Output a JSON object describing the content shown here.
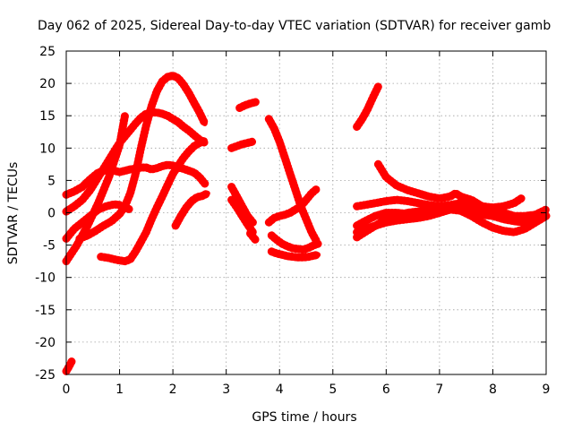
{
  "chart_data": {
    "type": "line",
    "title": "Day 062 of 2025, Sidereal Day-to-day VTEC variation (SDTVAR) for receiver gamb",
    "xlabel": "GPS time / hours",
    "ylabel": "SDTVAR / TECUs",
    "xlim": [
      0,
      9
    ],
    "ylim": [
      -25,
      25
    ],
    "xticks": [
      0,
      1,
      2,
      3,
      4,
      5,
      6,
      7,
      8,
      9
    ],
    "yticks": [
      -25,
      -20,
      -15,
      -10,
      -5,
      0,
      5,
      10,
      15,
      20,
      25
    ],
    "grid": true,
    "legend": "none",
    "series_color": "#ff0000",
    "series": [
      {
        "name": "s1",
        "x": [
          0.0,
          0.05,
          0.1
        ],
        "y": [
          -24.5,
          -23.8,
          -23.0
        ]
      },
      {
        "name": "s2",
        "x": [
          0.0,
          0.2,
          0.4,
          0.6,
          0.8,
          1.0,
          1.1
        ],
        "y": [
          -7.5,
          -5.0,
          -2.0,
          1.5,
          5.5,
          10.5,
          15.0
        ]
      },
      {
        "name": "s3",
        "x": [
          0.0,
          0.15,
          0.3,
          0.45,
          0.6,
          0.75,
          0.9,
          1.0,
          1.1,
          1.2,
          1.3,
          1.4,
          1.5,
          1.6,
          1.7,
          1.8,
          1.9,
          2.0,
          2.1,
          2.2,
          2.3,
          2.4,
          2.5,
          2.6
        ],
        "y": [
          2.8,
          3.3,
          4.0,
          5.2,
          6.2,
          6.6,
          6.5,
          6.3,
          6.5,
          6.7,
          6.8,
          7.0,
          7.0,
          6.7,
          6.9,
          7.2,
          7.4,
          7.3,
          7.0,
          6.8,
          6.5,
          6.2,
          5.5,
          4.5
        ]
      },
      {
        "name": "s4",
        "x": [
          0.0,
          0.15,
          0.3,
          0.45,
          0.6,
          0.75,
          0.9,
          1.0,
          1.1,
          1.2,
          1.3,
          1.4,
          1.5,
          1.6,
          1.7,
          1.8,
          1.9,
          2.0,
          2.1,
          2.2,
          2.3,
          2.4,
          2.5,
          2.6
        ],
        "y": [
          0.2,
          1.0,
          2.0,
          3.5,
          5.5,
          7.5,
          9.5,
          10.8,
          11.8,
          12.8,
          13.8,
          14.7,
          15.3,
          15.5,
          15.5,
          15.3,
          15.0,
          14.5,
          14.0,
          13.3,
          12.7,
          12.0,
          11.3,
          10.8
        ]
      },
      {
        "name": "s5",
        "x": [
          0.0,
          0.15,
          0.3,
          0.45,
          0.6,
          0.75,
          0.9,
          1.0,
          1.1,
          1.2
        ],
        "y": [
          -4.0,
          -2.5,
          -1.5,
          -0.5,
          0.5,
          1.0,
          1.3,
          1.2,
          0.8,
          0.5
        ]
      },
      {
        "name": "s6",
        "x": [
          0.25,
          0.4,
          0.55,
          0.7,
          0.85,
          1.0,
          1.1,
          1.2,
          1.3,
          1.4,
          1.5,
          1.6,
          1.7,
          1.8,
          1.9,
          2.0,
          2.1,
          2.2,
          2.3,
          2.4,
          2.5,
          2.6
        ],
        "y": [
          -4.0,
          -3.5,
          -2.8,
          -2.0,
          -1.3,
          -0.2,
          1.0,
          3.0,
          6.0,
          10.0,
          13.5,
          16.5,
          18.8,
          20.3,
          21.0,
          21.2,
          20.8,
          19.8,
          18.5,
          17.0,
          15.5,
          13.8
        ]
      },
      {
        "name": "s7",
        "x": [
          0.65,
          0.8,
          0.95,
          1.1,
          1.2,
          1.3,
          1.4,
          1.5,
          1.6,
          1.7,
          1.8,
          1.9,
          2.0,
          2.1,
          2.2,
          2.3,
          2.4,
          2.5,
          2.6
        ],
        "y": [
          -6.8,
          -7.0,
          -7.3,
          -7.5,
          -7.2,
          -6.0,
          -4.5,
          -3.0,
          -1.0,
          0.8,
          2.5,
          4.3,
          6.0,
          7.3,
          8.5,
          9.5,
          10.3,
          10.8,
          11.2
        ]
      },
      {
        "name": "s8",
        "x": [
          2.05,
          2.15,
          2.25,
          2.35,
          2.45,
          2.55,
          2.65
        ],
        "y": [
          -2.0,
          -0.5,
          0.8,
          1.8,
          2.4,
          2.6,
          3.0
        ]
      },
      {
        "name": "s9",
        "x": [
          3.25,
          3.35,
          3.45,
          3.55
        ],
        "y": [
          16.2,
          16.6,
          16.9,
          17.1
        ]
      },
      {
        "name": "s10",
        "x": [
          3.1,
          3.2,
          3.3,
          3.4,
          3.5
        ],
        "y": [
          10.0,
          10.3,
          10.6,
          10.8,
          11.0
        ]
      },
      {
        "name": "s11",
        "x": [
          3.1,
          3.2,
          3.3,
          3.4,
          3.5
        ],
        "y": [
          4.0,
          2.5,
          1.0,
          -0.5,
          -1.5
        ]
      },
      {
        "name": "s12",
        "x": [
          3.1,
          3.2,
          3.3,
          3.4,
          3.5
        ],
        "y": [
          2.0,
          0.8,
          -0.5,
          -1.8,
          -3.0
        ]
      },
      {
        "name": "s13",
        "x": [
          3.45,
          3.55
        ],
        "y": [
          -3.2,
          -4.2
        ]
      },
      {
        "name": "s14",
        "x": [
          3.8,
          3.9,
          4.0,
          4.1,
          4.2,
          4.3,
          4.4,
          4.5,
          4.6,
          4.7
        ],
        "y": [
          14.5,
          13.0,
          11.0,
          8.5,
          6.0,
          3.5,
          1.0,
          -1.0,
          -3.0,
          -4.5
        ]
      },
      {
        "name": "s15",
        "x": [
          3.8,
          3.9,
          4.0,
          4.1,
          4.2,
          4.3,
          4.4,
          4.5,
          4.6,
          4.7
        ],
        "y": [
          -1.5,
          -0.8,
          -0.5,
          -0.3,
          0.0,
          0.5,
          1.0,
          2.0,
          3.0,
          3.7
        ]
      },
      {
        "name": "s16",
        "x": [
          3.85,
          3.95,
          4.05,
          4.15,
          4.25,
          4.35,
          4.45,
          4.55,
          4.65,
          4.72
        ],
        "y": [
          -3.5,
          -4.2,
          -4.8,
          -5.2,
          -5.5,
          -5.6,
          -5.7,
          -5.4,
          -5.0,
          -4.8
        ]
      },
      {
        "name": "s17",
        "x": [
          3.85,
          3.95,
          4.05,
          4.15,
          4.25,
          4.35,
          4.45,
          4.55,
          4.65,
          4.72
        ],
        "y": [
          -6.0,
          -6.3,
          -6.5,
          -6.7,
          -6.8,
          -6.9,
          -6.9,
          -6.8,
          -6.6,
          -6.5
        ]
      },
      {
        "name": "s18",
        "x": [
          5.45,
          5.55,
          5.65,
          5.75,
          5.85
        ],
        "y": [
          13.3,
          14.5,
          16.0,
          17.8,
          19.5
        ]
      },
      {
        "name": "s19",
        "x": [
          5.85,
          6.0,
          6.2,
          6.4,
          6.6,
          6.8,
          7.0,
          7.2,
          7.3,
          7.4,
          7.6,
          7.8,
          8.0,
          8.2,
          8.4,
          8.6,
          8.8,
          9.0
        ],
        "y": [
          7.5,
          5.5,
          4.2,
          3.5,
          3.0,
          2.5,
          2.2,
          2.5,
          3.0,
          2.5,
          2.0,
          1.0,
          0.5,
          0.0,
          -0.5,
          -0.5,
          -0.3,
          0.2
        ]
      },
      {
        "name": "s20",
        "x": [
          5.45,
          5.6,
          5.8,
          6.0,
          6.2,
          6.4,
          6.6,
          6.8,
          7.0,
          7.2,
          7.4,
          7.6,
          7.8,
          8.0,
          8.2,
          8.4,
          8.55
        ],
        "y": [
          1.0,
          1.2,
          1.5,
          1.8,
          2.0,
          1.8,
          1.5,
          1.2,
          1.0,
          1.2,
          1.5,
          1.2,
          1.0,
          0.8,
          1.0,
          1.5,
          2.3
        ]
      },
      {
        "name": "s21",
        "x": [
          5.45,
          5.6,
          5.8,
          6.0,
          6.2,
          6.4,
          6.6,
          6.8,
          7.0,
          7.2,
          7.4,
          7.6,
          7.8,
          8.0,
          8.2,
          8.4,
          8.6,
          8.8,
          9.0
        ],
        "y": [
          -2.0,
          -1.3,
          -0.5,
          0.0,
          0.0,
          -0.2,
          -0.5,
          -0.3,
          0.0,
          0.5,
          0.8,
          0.5,
          0.0,
          -0.5,
          -1.0,
          -1.3,
          -1.5,
          -1.3,
          -0.5
        ]
      },
      {
        "name": "s22",
        "x": [
          5.45,
          5.6,
          5.8,
          6.0,
          6.2,
          6.4,
          6.6,
          6.8,
          7.0,
          7.2,
          7.4,
          7.6,
          7.8,
          8.0,
          8.2,
          8.4,
          8.6,
          8.8,
          9.0
        ],
        "y": [
          -3.0,
          -2.5,
          -2.0,
          -1.5,
          -1.2,
          -1.0,
          -0.8,
          -0.5,
          0.0,
          0.5,
          0.3,
          -0.5,
          -1.5,
          -2.3,
          -2.8,
          -3.0,
          -2.5,
          -1.5,
          -0.5
        ]
      },
      {
        "name": "s23",
        "x": [
          5.45,
          5.6,
          5.8,
          6.0,
          6.2,
          6.4,
          6.6,
          6.8,
          7.0,
          7.2,
          7.4,
          7.6,
          7.8,
          8.0,
          8.2,
          8.4,
          8.6,
          8.8,
          9.0
        ],
        "y": [
          -3.8,
          -3.0,
          -2.0,
          -1.0,
          -0.5,
          0.0,
          0.2,
          0.5,
          0.8,
          1.0,
          0.5,
          0.0,
          -0.3,
          -0.5,
          -0.8,
          -1.0,
          -0.8,
          -0.3,
          0.5
        ]
      }
    ]
  }
}
